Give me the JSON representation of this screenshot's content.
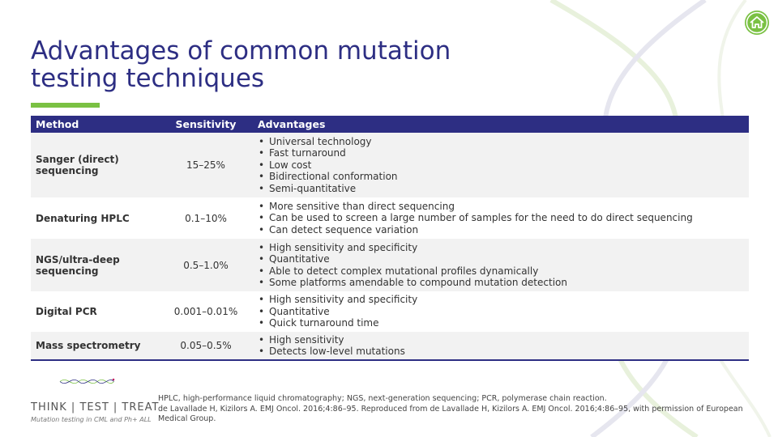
{
  "slide": {
    "title": "Advantages of common mutation testing techniques"
  },
  "nav": {
    "home_icon": "home-icon"
  },
  "table": {
    "headers": {
      "method": "Method",
      "sensitivity": "Sensitivity",
      "advantages": "Advantages"
    },
    "rows": [
      {
        "method": "Sanger (direct) sequencing",
        "sensitivity": "15–25%",
        "advantages": [
          "Universal technology",
          "Fast turnaround",
          "Low cost",
          "Bidirectional conformation",
          "Semi-quantitative"
        ]
      },
      {
        "method": "Denaturing HPLC",
        "sensitivity": "0.1–10%",
        "advantages": [
          "More sensitive than direct sequencing",
          "Can be used to screen a large number of samples for the need to do direct sequencing",
          "Can detect sequence variation"
        ]
      },
      {
        "method": "NGS/ultra-deep sequencing",
        "sensitivity": "0.5–1.0%",
        "advantages": [
          "High sensitivity and specificity",
          "Quantitative",
          "Able to detect complex mutational profiles dynamically",
          "Some platforms amendable to compound mutation detection"
        ]
      },
      {
        "method": "Digital PCR",
        "sensitivity": "0.001–0.01%",
        "advantages": [
          "High sensitivity and specificity",
          "Quantitative",
          "Quick turnaround time"
        ]
      },
      {
        "method": "Mass spectrometry",
        "sensitivity": "0.05–0.5%",
        "advantages": [
          "High sensitivity",
          "Detects low-level mutations"
        ]
      }
    ]
  },
  "logo": {
    "name": "THINK | TEST | TREAT",
    "tagline": "Mutation testing in CML and Ph+ ALL"
  },
  "footnote": {
    "abbreviations": "HPLC, high-performance liquid chromatography; NGS, next-generation sequencing; PCR, polymerase chain reaction.",
    "reference": "de Lavallade H, Kizilors A. EMJ Oncol. 2016;4:86–95. Reproduced from de Lavallade H, Kizilors A. EMJ Oncol. 2016;4:86–95, with permission of European Medical Group."
  },
  "colors": {
    "accent": "#2d2e83",
    "green": "#7ac143",
    "row_alt": "#f2f2f2"
  }
}
